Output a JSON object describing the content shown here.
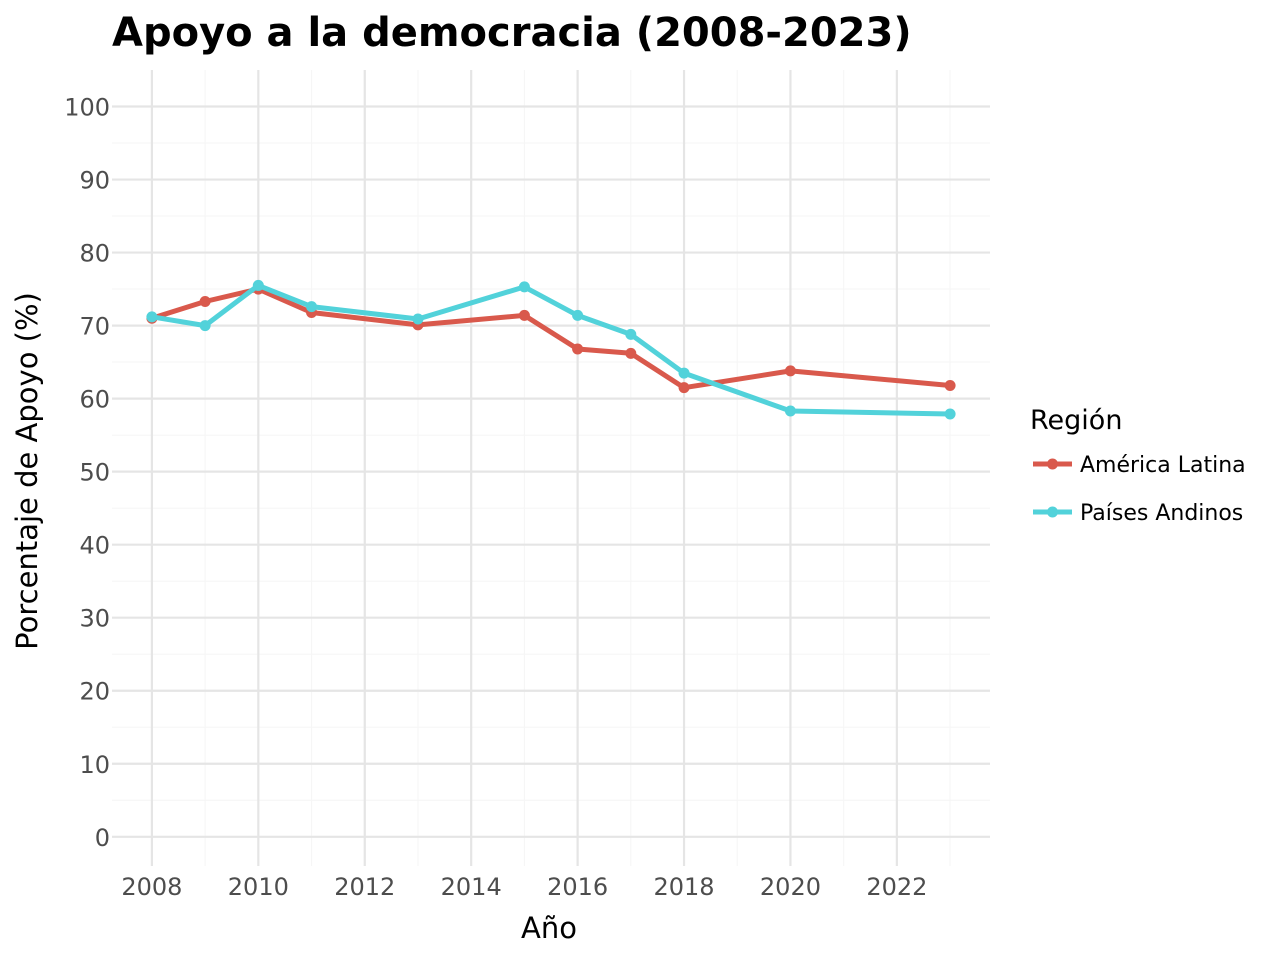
{
  "chart_data": {
    "type": "line",
    "title": "Apoyo a la democracia (2008-2023)",
    "xlabel": "Año",
    "ylabel": "Porcentaje de Apoyo (%)",
    "xlim": [
      2007.25,
      2023.75
    ],
    "ylim": [
      -4,
      105
    ],
    "x_ticks": [
      2008,
      2010,
      2012,
      2014,
      2016,
      2018,
      2020,
      2022
    ],
    "y_ticks": [
      0,
      10,
      20,
      30,
      40,
      50,
      60,
      70,
      80,
      90,
      100
    ],
    "grid": true,
    "legend": {
      "title": "Región",
      "position": "right"
    },
    "series": [
      {
        "name": "América Latina",
        "color": "#d9594c",
        "x": [
          2008,
          2009,
          2010,
          2011,
          2013,
          2015,
          2016,
          2017,
          2018,
          2020,
          2023
        ],
        "values": [
          71.0,
          73.3,
          75.0,
          71.8,
          70.1,
          71.4,
          66.8,
          66.2,
          61.5,
          63.8,
          61.8
        ]
      },
      {
        "name": "Países Andinos",
        "color": "#52d2da",
        "x": [
          2008,
          2009,
          2010,
          2011,
          2013,
          2015,
          2016,
          2017,
          2018,
          2020,
          2023
        ],
        "values": [
          71.2,
          70.0,
          75.5,
          72.6,
          70.9,
          75.3,
          71.4,
          68.8,
          63.5,
          58.3,
          57.9
        ]
      }
    ]
  }
}
